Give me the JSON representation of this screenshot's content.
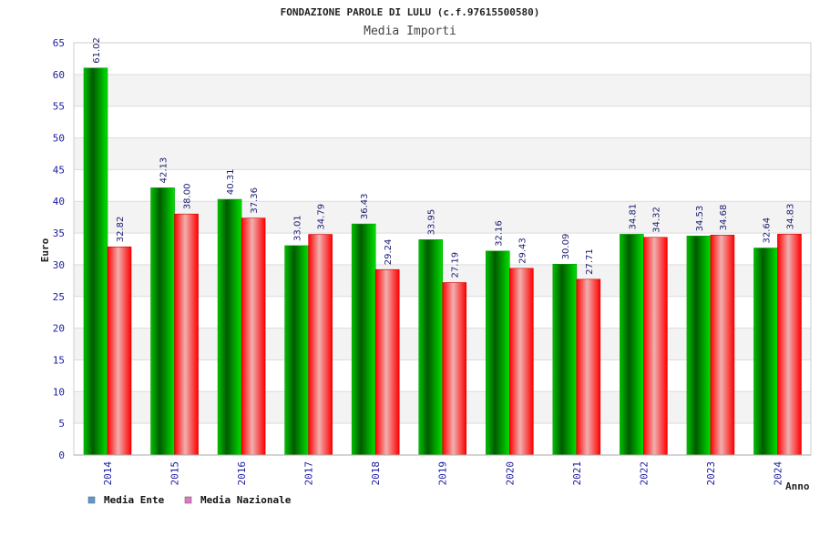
{
  "chart_data": {
    "type": "bar",
    "title": "FONDAZIONE PAROLE DI LULU (c.f.97615500580)",
    "subtitle": "Media Importi",
    "xlabel": "Anno",
    "ylabel": "Euro",
    "ylim": [
      0,
      65
    ],
    "yticks": [
      0,
      5,
      10,
      15,
      20,
      25,
      30,
      35,
      40,
      45,
      50,
      55,
      60,
      65
    ],
    "grid": true,
    "legend_position": "bottom-left",
    "categories": [
      "2014",
      "2015",
      "2016",
      "2017",
      "2018",
      "2019",
      "2020",
      "2021",
      "2022",
      "2023",
      "2024"
    ],
    "series": [
      {
        "name": "Media Ente",
        "color": "#00c000",
        "legend_color": "#5b9bd5",
        "values": [
          61.02,
          42.13,
          40.31,
          33.01,
          36.43,
          33.95,
          32.16,
          30.09,
          34.81,
          34.53,
          32.64
        ],
        "labels": [
          "61.02",
          "42.13",
          "40.31",
          "33.01",
          "36.43",
          "33.95",
          "32.16",
          "30.09",
          "34.81",
          "34.53",
          "32.64"
        ]
      },
      {
        "name": "Media Nazionale",
        "color": "#ff1a1a",
        "legend_color": "#e377c2",
        "values": [
          32.82,
          38.0,
          37.36,
          34.79,
          29.24,
          27.19,
          29.43,
          27.71,
          34.32,
          34.68,
          34.83
        ],
        "labels": [
          "32.82",
          "38.00",
          "37.36",
          "34.79",
          "29.24",
          "27.19",
          "29.43",
          "27.71",
          "34.32",
          "34.68",
          "34.83"
        ]
      }
    ]
  }
}
